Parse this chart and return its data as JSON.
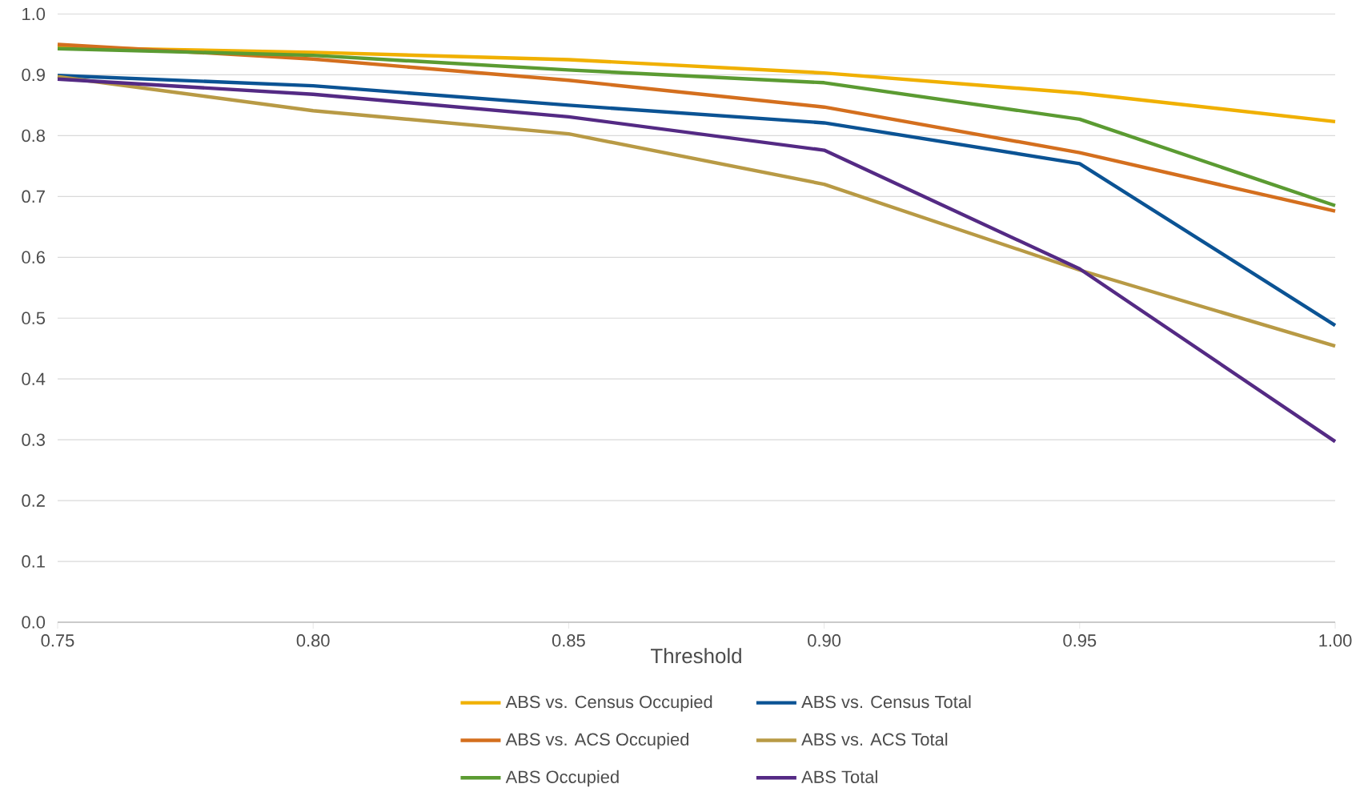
{
  "chart_data": {
    "type": "line",
    "xlabel": "Threshold",
    "x": [
      0.75,
      0.8,
      0.85,
      0.9,
      0.95,
      1.0
    ],
    "series": [
      {
        "name": "ABS vs. Census Occupied",
        "color": "#f0b000",
        "values": [
          0.945,
          0.937,
          0.925,
          0.903,
          0.87,
          0.823
        ]
      },
      {
        "name": "ABS vs. Census Total",
        "color": "#0b5394",
        "values": [
          0.899,
          0.882,
          0.85,
          0.821,
          0.754,
          0.488
        ]
      },
      {
        "name": "ABS vs. ACS Occupied",
        "color": "#d46f1e",
        "values": [
          0.95,
          0.926,
          0.891,
          0.847,
          0.772,
          0.676
        ]
      },
      {
        "name": "ABS vs. ACS Total",
        "color": "#b89a45",
        "values": [
          0.897,
          0.841,
          0.803,
          0.72,
          0.579,
          0.454
        ]
      },
      {
        "name": "ABS Occupied",
        "color": "#5b9b32",
        "values": [
          0.943,
          0.932,
          0.908,
          0.887,
          0.827,
          0.685
        ]
      },
      {
        "name": "ABS Total",
        "color": "#542a84",
        "values": [
          0.893,
          0.868,
          0.831,
          0.776,
          0.581,
          0.297
        ]
      }
    ],
    "xlim": [
      0.75,
      1.0
    ],
    "ylim": [
      0,
      1.0
    ],
    "xticks": [
      {
        "value": 0.75,
        "label": "0.75"
      },
      {
        "value": 0.8,
        "label": "0.80"
      },
      {
        "value": 0.85,
        "label": "0.85"
      },
      {
        "value": 0.9,
        "label": "0.90"
      },
      {
        "value": 0.95,
        "label": "0.95"
      },
      {
        "value": 1.0,
        "label": "1.00"
      }
    ],
    "yticks": [
      {
        "value": 0,
        "label": "0.0"
      },
      {
        "value": 0.1,
        "label": "0.1"
      },
      {
        "value": 0.2,
        "label": "0.2"
      },
      {
        "value": 0.3,
        "label": "0.3"
      },
      {
        "value": 0.4,
        "label": "0.4"
      },
      {
        "value": 0.5,
        "label": "0.5"
      },
      {
        "value": 0.6,
        "label": "0.6"
      },
      {
        "value": 0.7,
        "label": "0.7"
      },
      {
        "value": 0.8,
        "label": "0.8"
      },
      {
        "value": 0.9,
        "label": "0.9"
      },
      {
        "value": 1.0,
        "label": "1.0"
      }
    ],
    "grid": "y",
    "legend": "bottom",
    "marker": "none",
    "line_style": "solid"
  }
}
